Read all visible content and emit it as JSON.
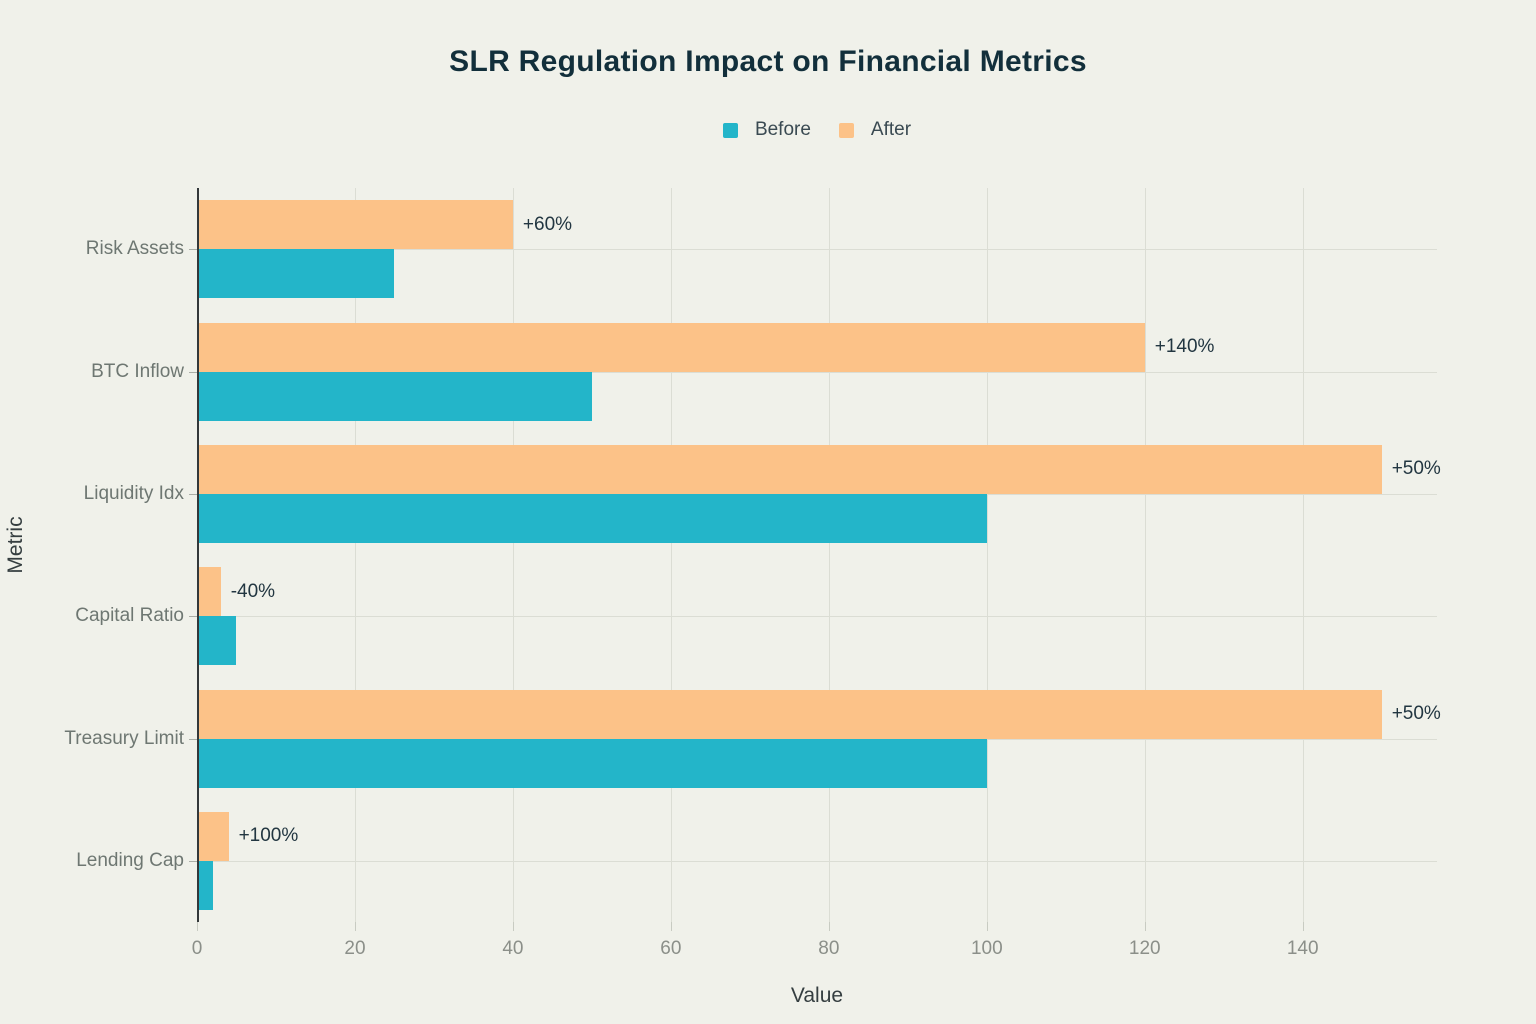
{
  "chart_data": {
    "type": "bar",
    "orientation": "horizontal",
    "title": "SLR Regulation Impact on Financial Metrics",
    "xlabel": "Value",
    "ylabel": "Metric",
    "categories": [
      "Risk Assets",
      "BTC Inflow",
      "Liquidity Idx",
      "Capital Ratio",
      "Treasury Limit",
      "Lending Cap"
    ],
    "series": [
      {
        "name": "Before",
        "color": "#23B5C9",
        "values": [
          25,
          50,
          100,
          5,
          100,
          2
        ]
      },
      {
        "name": "After",
        "color": "#FCC288",
        "values": [
          40,
          120,
          150,
          3,
          150,
          4
        ]
      }
    ],
    "annotations": [
      "+60%",
      "+140%",
      "+50%",
      "-40%",
      "+50%",
      "+100%"
    ],
    "x_ticks": [
      0,
      20,
      40,
      60,
      80,
      100,
      120,
      140
    ],
    "xlim": [
      0,
      157
    ],
    "grid": true,
    "legend_position": "top-center",
    "row_order_top_to_bottom": [
      "After",
      "Before"
    ]
  },
  "colors": {
    "background": "#F0F1EA",
    "title": "#122F3B",
    "before_bar": "#23B5C9",
    "after_bar": "#FCC288",
    "annotation_text": "#223641",
    "category_label": "#6E7772",
    "tick_label": "#8B8F89",
    "axis_title": "#353E40",
    "gridline": "#DBDDD4",
    "axis_line": "#33383A",
    "legend_text": "#3A4A52"
  }
}
